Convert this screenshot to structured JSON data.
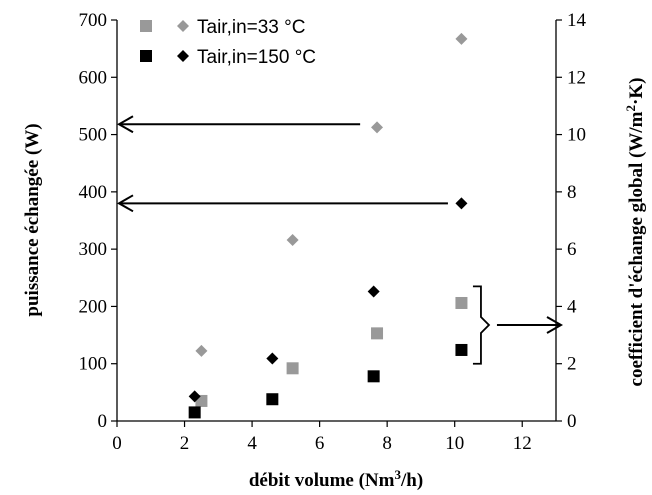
{
  "chart_data": {
    "type": "scatter",
    "xlabel": "débit volume (Nm³/h)",
    "ylabel": "puissance échangée (W)",
    "y2label": "coefficient d'échange global (W/m²·K)",
    "xlim": [
      0,
      13
    ],
    "ylim": [
      0,
      700
    ],
    "y2lim": [
      0,
      14
    ],
    "xticks": [
      "0",
      "2",
      "4",
      "6",
      "8",
      "10",
      "12"
    ],
    "yticks": [
      "0",
      "100",
      "200",
      "300",
      "400",
      "500",
      "600",
      "700"
    ],
    "y2ticks": [
      "0",
      "2",
      "4",
      "6",
      "8",
      "10",
      "12",
      "14"
    ],
    "grid": false,
    "legend_position": "top-left",
    "legend_entries": [
      {
        "label": "Tair,in=33 °C",
        "color": "#999999"
      },
      {
        "label": "Tair,in=150 °C",
        "color": "#000000"
      }
    ],
    "series": [
      {
        "group": "Tair,in=33 °C",
        "marker": "square",
        "axis": "left",
        "color": "#999999",
        "x": [
          2.5,
          5.2,
          7.7,
          10.2
        ],
        "y": [
          35,
          92,
          153,
          206
        ]
      },
      {
        "group": "Tair,in=33 °C",
        "marker": "diamond",
        "axis": "right",
        "color": "#999999",
        "x": [
          2.5,
          5.2,
          7.7,
          10.2
        ],
        "y": [
          2.45,
          6.32,
          10.25,
          13.34
        ]
      },
      {
        "group": "Tair,in=150 °C",
        "marker": "square",
        "axis": "left",
        "color": "#000000",
        "x": [
          2.3,
          4.6,
          7.6,
          10.2
        ],
        "y": [
          15,
          38,
          78,
          124
        ]
      },
      {
        "group": "Tair,in=150 °C",
        "marker": "diamond",
        "axis": "right",
        "color": "#000000",
        "x": [
          2.3,
          4.6,
          7.6,
          10.2
        ],
        "y": [
          0.86,
          2.18,
          4.52,
          7.6
        ]
      }
    ],
    "annotations": [
      {
        "type": "arrow-left",
        "axis": "left",
        "y": 518,
        "x_from": 7.2,
        "x_to": 0
      },
      {
        "type": "arrow-left",
        "axis": "left",
        "y": 380,
        "x_from": 9.8,
        "x_to": 0
      },
      {
        "type": "brace-arrow-right",
        "axis": "left",
        "y_from": 100,
        "y_to": 235,
        "x": 10.6
      }
    ]
  }
}
